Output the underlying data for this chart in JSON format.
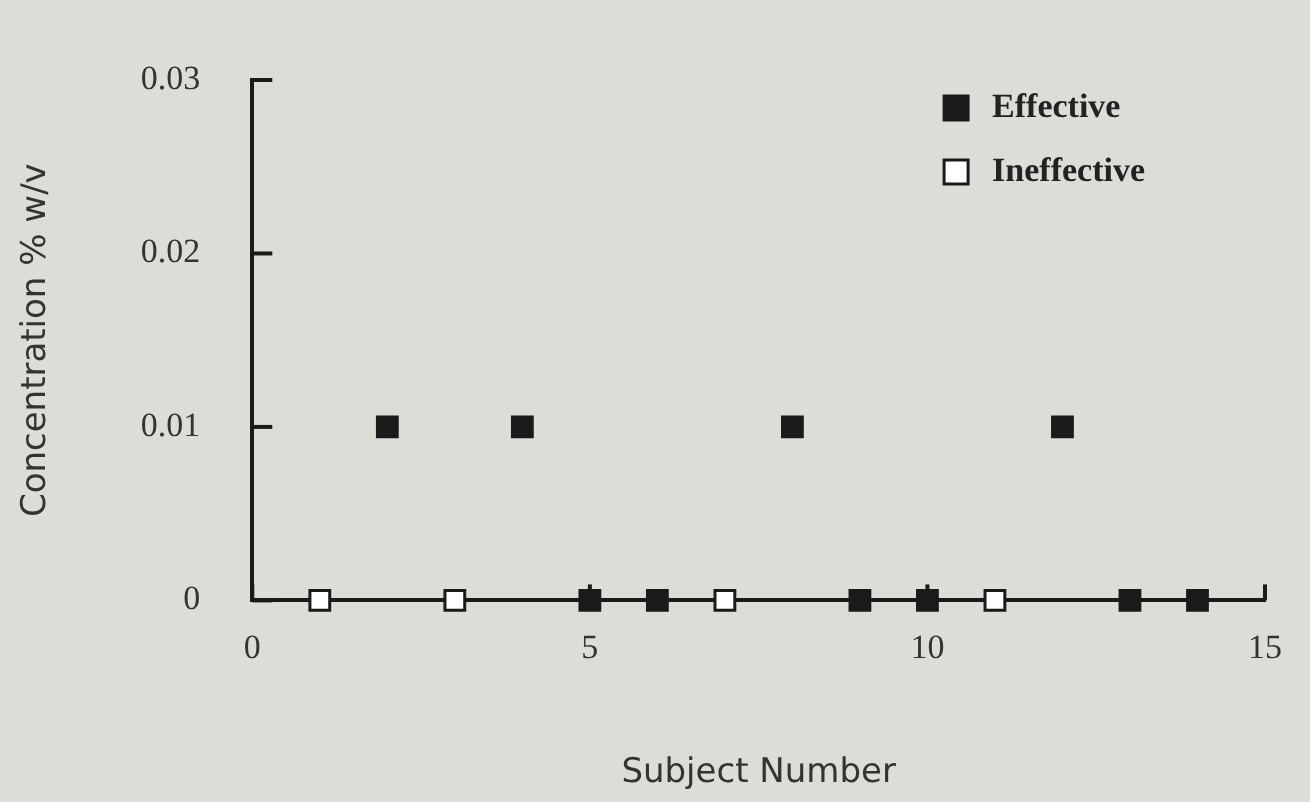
{
  "chart_data": {
    "type": "scatter",
    "xlabel": "Subject Number",
    "ylabel": "Concentration % w/v",
    "x": [
      1,
      2,
      3,
      4,
      5,
      6,
      7,
      8,
      9,
      10,
      11,
      12,
      13,
      14
    ],
    "series": [
      {
        "name": "Effective",
        "color": "#1a1a1a",
        "values": [
          null,
          0.01,
          null,
          0.01,
          0,
          0,
          null,
          0.01,
          0,
          0,
          null,
          0.01,
          0,
          0
        ]
      },
      {
        "name": "Ineffective",
        "color": "#ffffff",
        "values": [
          0,
          null,
          0,
          null,
          null,
          null,
          0,
          null,
          null,
          null,
          0,
          null,
          null,
          null
        ]
      }
    ],
    "xlim": [
      0,
      15
    ],
    "xticks": [
      0,
      5,
      10,
      15
    ],
    "ylim": [
      0,
      0.03
    ],
    "yticks": [
      0,
      0.01,
      0.02,
      0.03
    ],
    "grid": false,
    "legend": "top right",
    "marker": "square"
  }
}
